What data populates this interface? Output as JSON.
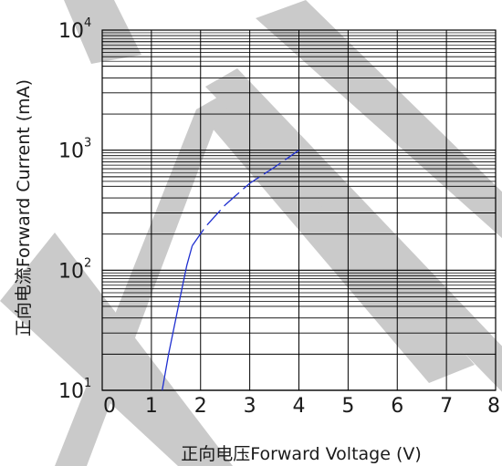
{
  "chart_data": {
    "type": "line",
    "title": "",
    "xlabel": "正向电压Forward Voltage (V)",
    "ylabel": "正向电流Forward Current (mA)",
    "xlim": [
      0,
      8
    ],
    "ylim": [
      10,
      10000
    ],
    "yscale": "log",
    "x_ticks": [
      "0",
      "1",
      "2",
      "3",
      "4",
      "5",
      "6",
      "7",
      "8"
    ],
    "y_ticks": [
      {
        "base": "10",
        "exp": "1"
      },
      {
        "base": "10",
        "exp": "2"
      },
      {
        "base": "10",
        "exp": "3"
      },
      {
        "base": "10",
        "exp": "4"
      }
    ],
    "grid": true,
    "series": [
      {
        "style": "solid",
        "color": "#1f2fd0",
        "x": [
          1.22,
          1.35,
          1.5,
          1.62,
          1.72,
          1.83
        ],
        "y": [
          10,
          20,
          40,
          70,
          110,
          160
        ]
      },
      {
        "style": "dashed",
        "color": "#1f2fd0",
        "x": [
          1.83,
          2.1,
          2.5,
          3.0,
          3.5,
          4.0
        ],
        "y": [
          160,
          230,
          350,
          530,
          720,
          1000
        ]
      }
    ],
    "watermark_color": "#c8c8c8"
  }
}
